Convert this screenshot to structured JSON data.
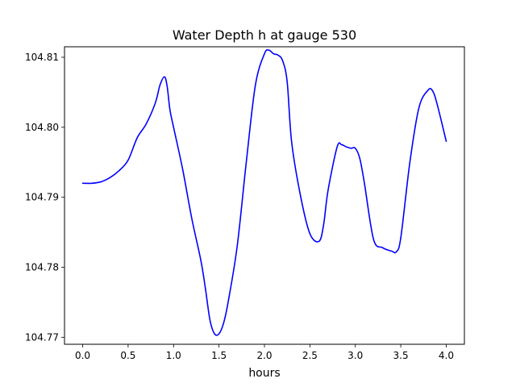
{
  "chart_data": {
    "type": "line",
    "title": "Water Depth h at gauge 530",
    "xlabel": "hours",
    "ylabel": "",
    "xlim": [
      -0.2,
      4.2
    ],
    "ylim": [
      104.769,
      104.8115
    ],
    "x_ticks": [
      0.0,
      0.5,
      1.0,
      1.5,
      2.0,
      2.5,
      3.0,
      3.5,
      4.0
    ],
    "x_tick_labels": [
      "0.0",
      "0.5",
      "1.0",
      "1.5",
      "2.0",
      "2.5",
      "3.0",
      "3.5",
      "4.0"
    ],
    "y_ticks": [
      104.77,
      104.78,
      104.79,
      104.8,
      104.81
    ],
    "y_tick_labels": [
      "104.77",
      "104.78",
      "104.79",
      "104.80",
      "104.81"
    ],
    "grid": false,
    "series": [
      {
        "color": "#0000ff",
        "x": [
          0.0,
          0.1,
          0.2,
          0.3,
          0.4,
          0.5,
          0.6,
          0.7,
          0.8,
          0.85,
          0.9,
          0.93,
          0.96,
          1.0,
          1.1,
          1.2,
          1.3,
          1.35,
          1.4,
          1.45,
          1.5,
          1.55,
          1.6,
          1.7,
          1.8,
          1.9,
          2.0,
          2.05,
          2.1,
          2.15,
          2.2,
          2.25,
          2.3,
          2.4,
          2.5,
          2.6,
          2.65,
          2.7,
          2.8,
          2.85,
          2.9,
          2.95,
          3.0,
          3.05,
          3.1,
          3.2,
          3.3,
          3.4,
          3.45,
          3.5,
          3.6,
          3.7,
          3.8,
          3.85,
          3.9,
          4.0
        ],
        "y": [
          104.792,
          104.792,
          104.7922,
          104.7928,
          104.7938,
          104.7953,
          104.7985,
          104.8005,
          104.8035,
          104.806,
          104.8072,
          104.8058,
          104.8025,
          104.8,
          104.794,
          104.787,
          104.781,
          104.777,
          104.7725,
          104.7705,
          104.7705,
          104.772,
          104.775,
          104.783,
          104.795,
          104.806,
          104.8105,
          104.811,
          104.8105,
          104.8103,
          104.8095,
          104.8065,
          104.7978,
          104.79,
          104.7848,
          104.7837,
          104.786,
          104.791,
          104.7972,
          104.7975,
          104.7972,
          104.797,
          104.797,
          104.7955,
          104.792,
          104.784,
          104.7828,
          104.7823,
          104.7822,
          104.7842,
          104.795,
          104.8028,
          104.8053,
          104.8052,
          104.8033,
          104.798
        ]
      }
    ]
  }
}
